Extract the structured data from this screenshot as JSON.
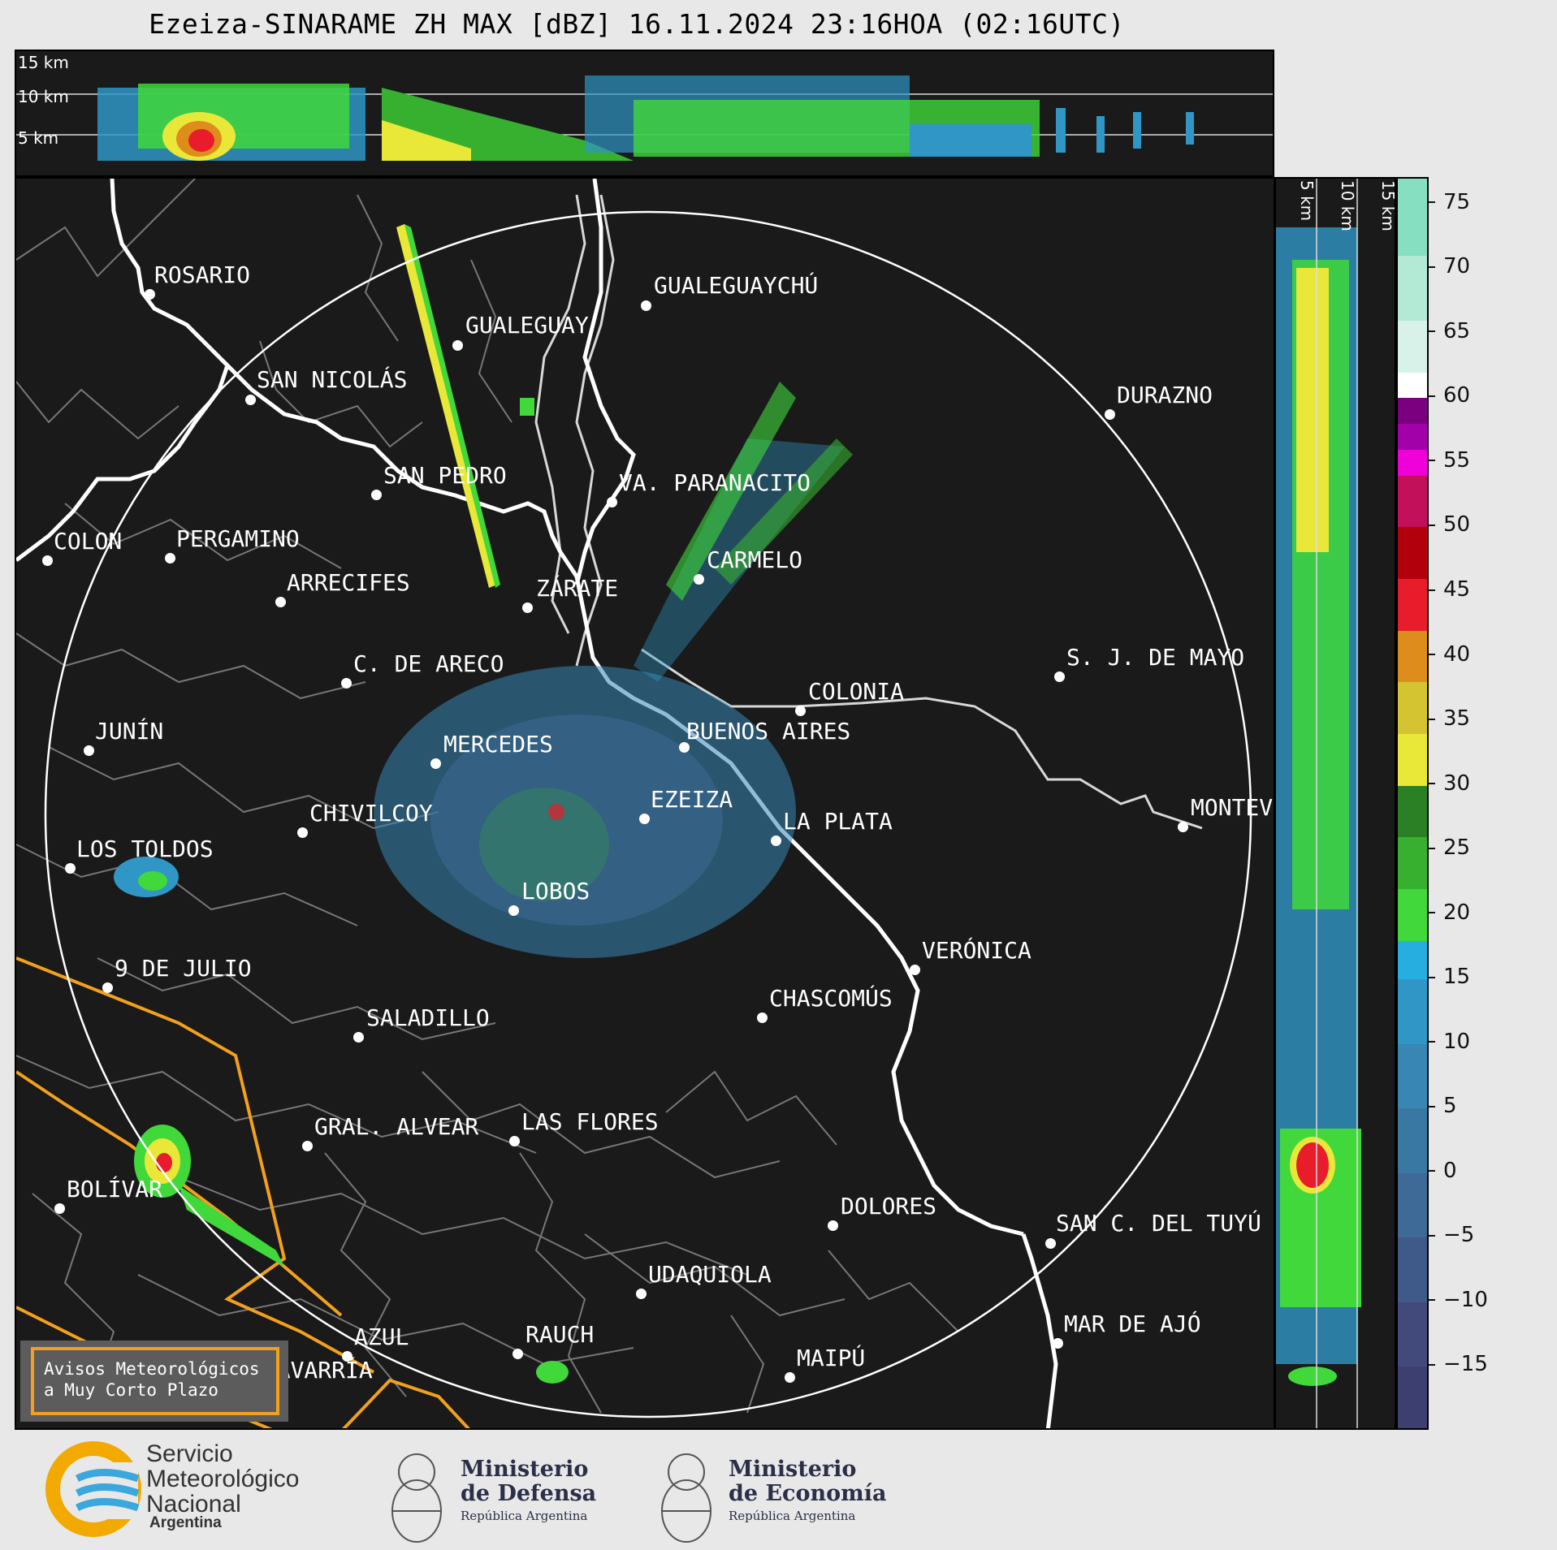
{
  "title": "Ezeiza-SINARAME ZH MAX [dBZ] 16.11.2024 23:16HOA (02:16UTC)",
  "top_panel": {
    "height_labels": [
      "15 km",
      "10 km",
      "5 km"
    ]
  },
  "side_panel": {
    "height_labels": [
      "5 km",
      "10 km",
      "15 km"
    ]
  },
  "colorbar": {
    "ticks": [
      "75",
      "70",
      "65",
      "60",
      "55",
      "50",
      "45",
      "40",
      "35",
      "30",
      "25",
      "20",
      "15",
      "10",
      "5",
      "0",
      "−5",
      "−10",
      "−15"
    ],
    "bands": [
      {
        "from": -20,
        "to": -15,
        "color": "#3d3f6e"
      },
      {
        "from": -15,
        "to": -10,
        "color": "#414a7a"
      },
      {
        "from": -10,
        "to": -5,
        "color": "#3f5a88"
      },
      {
        "from": -5,
        "to": 0,
        "color": "#3d6a96"
      },
      {
        "from": 0,
        "to": 5,
        "color": "#3a78a4"
      },
      {
        "from": 5,
        "to": 10,
        "color": "#3786b4"
      },
      {
        "from": 10,
        "to": 15,
        "color": "#2f96c6"
      },
      {
        "from": 15,
        "to": 18,
        "color": "#27aee0"
      },
      {
        "from": 18,
        "to": 22,
        "color": "#40d83a"
      },
      {
        "from": 22,
        "to": 26,
        "color": "#37b030"
      },
      {
        "from": 26,
        "to": 30,
        "color": "#2b7f24"
      },
      {
        "from": 30,
        "to": 34,
        "color": "#e9e838"
      },
      {
        "from": 34,
        "to": 38,
        "color": "#d4c432"
      },
      {
        "from": 38,
        "to": 42,
        "color": "#de8c1c"
      },
      {
        "from": 42,
        "to": 46,
        "color": "#e81c2a"
      },
      {
        "from": 46,
        "to": 50,
        "color": "#b3000d"
      },
      {
        "from": 50,
        "to": 54,
        "color": "#c2105a"
      },
      {
        "from": 54,
        "to": 56,
        "color": "#f000d8"
      },
      {
        "from": 56,
        "to": 58,
        "color": "#a200a8"
      },
      {
        "from": 58,
        "to": 60,
        "color": "#7a0080"
      },
      {
        "from": 60,
        "to": 62,
        "color": "#ffffff"
      },
      {
        "from": 62,
        "to": 66,
        "color": "#d8f2ea"
      },
      {
        "from": 66,
        "to": 71,
        "color": "#b2ead6"
      },
      {
        "from": 71,
        "to": 77,
        "color": "#86dfc0"
      }
    ]
  },
  "cities": [
    {
      "name": "ROSARIO"
    },
    {
      "name": "GUALEGUAYCHÚ"
    },
    {
      "name": "GUALEGUAY"
    },
    {
      "name": "SAN NICOLÁS"
    },
    {
      "name": "DURAZNO"
    },
    {
      "name": "SAN PEDRO"
    },
    {
      "name": "VA. PARANACITO"
    },
    {
      "name": "COLON"
    },
    {
      "name": "PERGAMINO"
    },
    {
      "name": "CARMELO"
    },
    {
      "name": "ARRECIFES"
    },
    {
      "name": "ZÁRATE"
    },
    {
      "name": "S. J. DE MAYO"
    },
    {
      "name": "C. DE ARECO"
    },
    {
      "name": "COLONIA"
    },
    {
      "name": "JUNÍN"
    },
    {
      "name": "BUENOS AIRES"
    },
    {
      "name": "MERCEDES"
    },
    {
      "name": "MONTEV"
    },
    {
      "name": "EZEIZA"
    },
    {
      "name": "CHIVILCOY"
    },
    {
      "name": "LA PLATA"
    },
    {
      "name": "LOS TOLDOS"
    },
    {
      "name": "LOBOS"
    },
    {
      "name": "VERÓNICA"
    },
    {
      "name": "9 DE JULIO"
    },
    {
      "name": "CHASCOMÚS"
    },
    {
      "name": "SALADILLO"
    },
    {
      "name": "GRAL. ALVEAR"
    },
    {
      "name": "LAS FLORES"
    },
    {
      "name": "BOLÍVAR"
    },
    {
      "name": "DOLORES"
    },
    {
      "name": "SAN C. DEL TUYÚ"
    },
    {
      "name": "UDAQUIOLA"
    },
    {
      "name": "MAR DE AJÓ"
    },
    {
      "name": "AZUL"
    },
    {
      "name": "RAUCH"
    },
    {
      "name": "OLAVARRÍA"
    },
    {
      "name": "MAIPÚ"
    }
  ],
  "warning_box": {
    "line1": "Avisos Meteorológicos",
    "line2": "a Muy Corto Plazo"
  },
  "logos": {
    "smn": {
      "lines": [
        "Servicio",
        "Meteorológico",
        "Nacional"
      ],
      "country": "Argentina"
    },
    "defensa": {
      "line1": "Ministerio",
      "line2": "de Defensa",
      "sub": "República Argentina"
    },
    "economia": {
      "line1": "Ministerio",
      "line2": "de Economía",
      "sub": "República Argentina"
    }
  }
}
